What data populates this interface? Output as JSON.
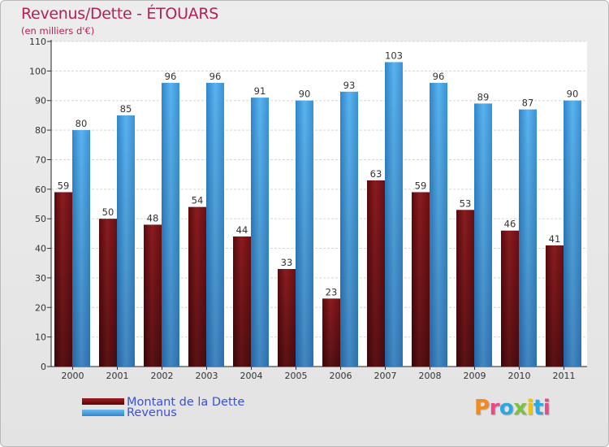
{
  "header": {
    "title": "Revenus/Dette - ÉTOUARS",
    "subtitle": "(en milliers d'€)"
  },
  "colors": {
    "dette": "#7a1216",
    "revenus": "#3f9fe3",
    "title": "#b5224f",
    "legend_text": "#3b4fd8"
  },
  "chart_data": {
    "type": "bar",
    "categories": [
      "2000",
      "2001",
      "2002",
      "2003",
      "2004",
      "2005",
      "2006",
      "2007",
      "2008",
      "2009",
      "2010",
      "2011"
    ],
    "series": [
      {
        "name": "Montant de la Dette",
        "values": [
          59,
          50,
          48,
          54,
          44,
          33,
          23,
          63,
          59,
          53,
          46,
          41
        ]
      },
      {
        "name": "Revenus",
        "values": [
          80,
          85,
          96,
          96,
          91,
          90,
          93,
          103,
          96,
          89,
          87,
          90
        ]
      }
    ],
    "ylim": [
      0,
      110
    ],
    "yticks": [
      0,
      10,
      20,
      30,
      40,
      50,
      60,
      70,
      80,
      90,
      100,
      110
    ],
    "grid": true,
    "legend_position": "bottom-left"
  },
  "legend": {
    "items": [
      "Montant de la Dette",
      "Revenus"
    ]
  },
  "logo": {
    "letters": [
      "P",
      "r",
      "o",
      "x",
      "i",
      "t",
      "i"
    ],
    "colors": [
      "#f28b1e",
      "#e84a8a",
      "#2aa8e0",
      "#7cc242",
      "#f5c400",
      "#2aa8e0",
      "#e84a8a"
    ]
  }
}
